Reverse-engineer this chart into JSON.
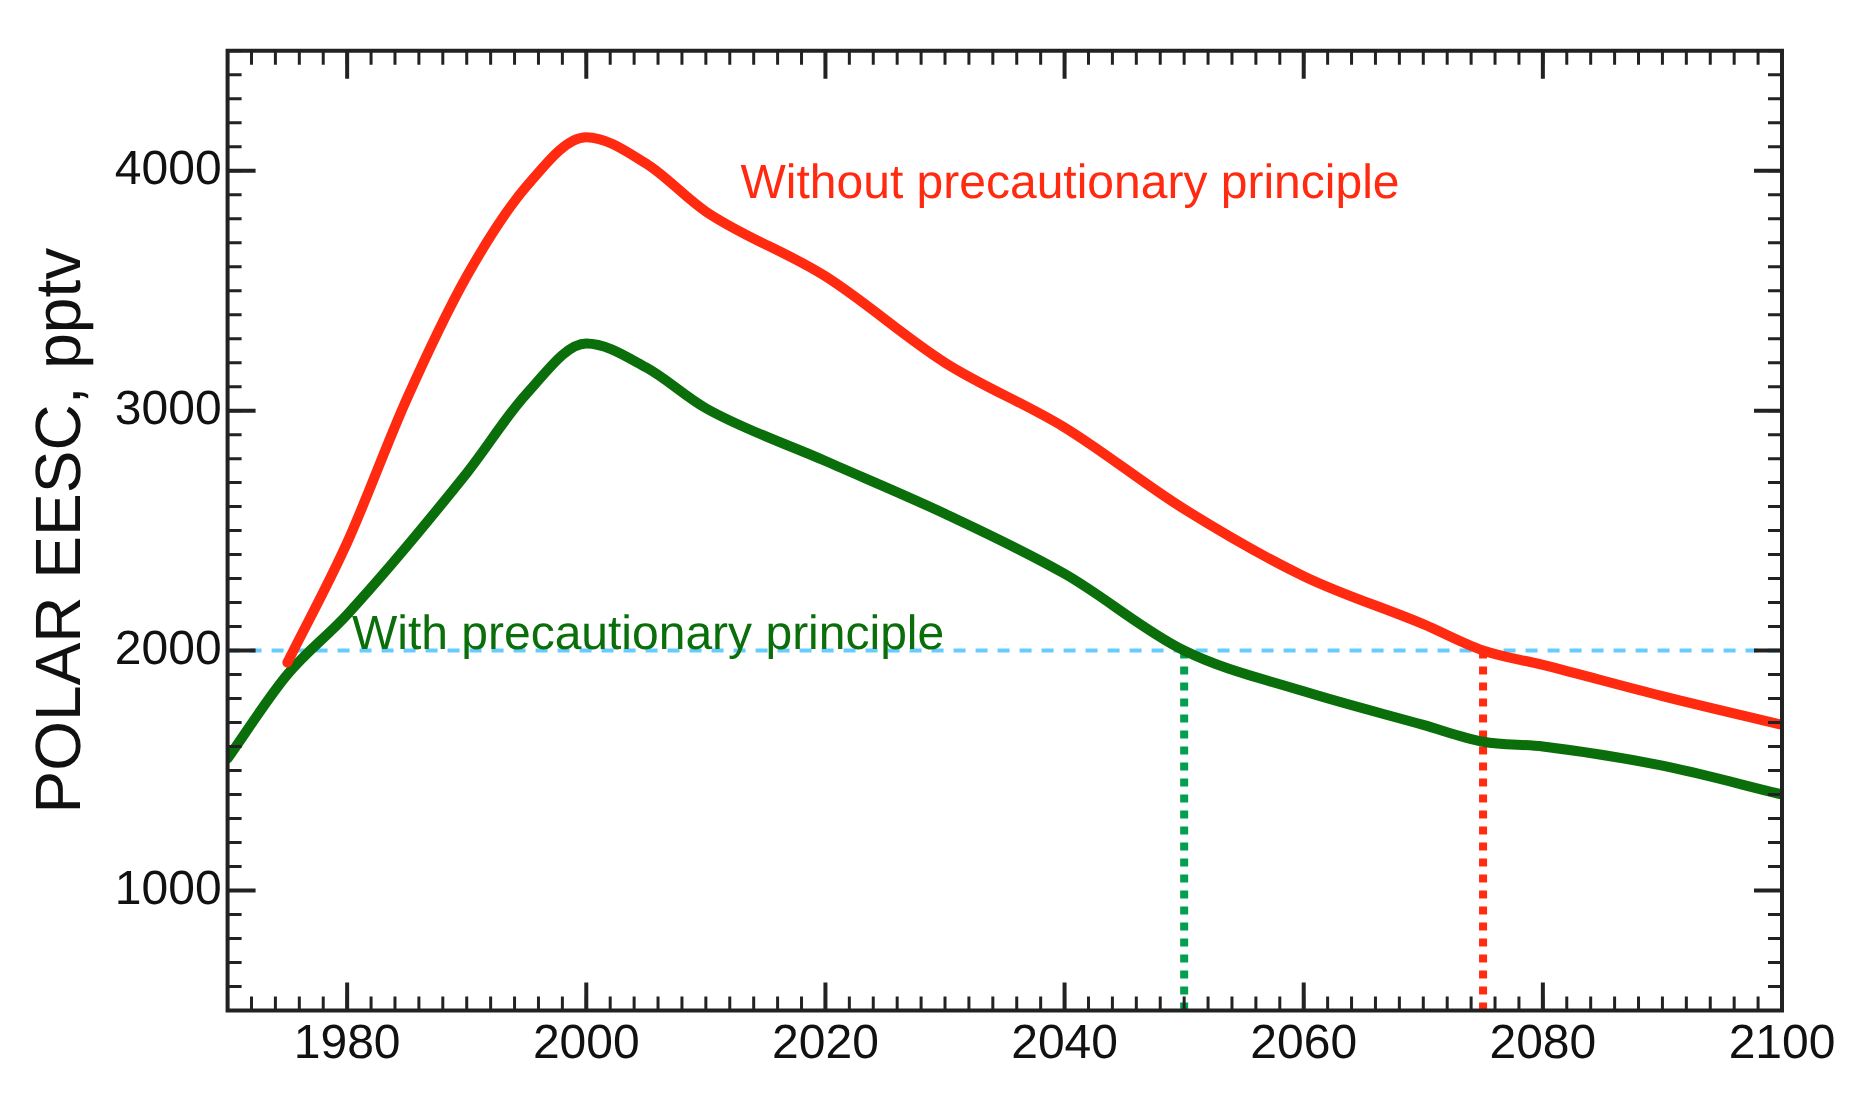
{
  "chart_data": {
    "type": "line",
    "ylabel": "POLAR EESC, pptv",
    "xlim": [
      1970,
      2100
    ],
    "xticks": [
      1980,
      2000,
      2020,
      2040,
      2060,
      2080,
      2100
    ],
    "ylim": [
      500,
      4500
    ],
    "yticks": [
      1000,
      2000,
      3000,
      4000
    ],
    "grid": false,
    "legend": false,
    "marker": "none",
    "line_style": "solid",
    "series": [
      {
        "name": "Without precautionary principle",
        "color": "#ff2a10",
        "x": [
          1975,
          1980,
          1985,
          1990,
          1995,
          2000,
          2005,
          2010,
          2020,
          2030,
          2040,
          2050,
          2060,
          2070,
          2075,
          2080,
          2090,
          2100
        ],
        "values": [
          1950,
          2450,
          3050,
          3560,
          3935,
          4140,
          4030,
          3830,
          3560,
          3200,
          2930,
          2590,
          2310,
          2110,
          2000,
          1940,
          1810,
          1690
        ]
      },
      {
        "name": "With precautionary principle",
        "color": "#0a6e0a",
        "x": [
          1970,
          1975,
          1980,
          1990,
          1995,
          2000,
          2005,
          2010,
          2020,
          2030,
          2040,
          2050,
          2060,
          2070,
          2075,
          2080,
          2090,
          2100
        ],
        "values": [
          1550,
          1900,
          2150,
          2740,
          3070,
          3280,
          3180,
          3010,
          2790,
          2570,
          2320,
          2000,
          1830,
          1690,
          1620,
          1600,
          1520,
          1400
        ]
      }
    ],
    "ref_lines": [
      {
        "axis": "y",
        "value": 2000,
        "color": "#66ccff",
        "line_style": "dashed"
      },
      {
        "axis": "x",
        "value": 2050,
        "color": "#00a050",
        "line_style": "dotted"
      },
      {
        "axis": "x",
        "value": 2075,
        "color": "#ff2a10",
        "line_style": "dotted"
      }
    ]
  }
}
